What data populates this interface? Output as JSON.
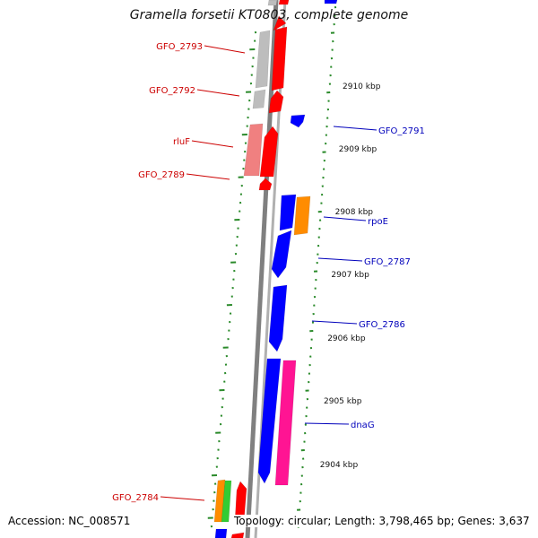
{
  "title": "Gramella forsetii KT0803, complete genome",
  "footer": {
    "accession": "Accession: NC_008571",
    "topology": "Topology: circular; Length: 3,798,465 bp; Genes: 3,637"
  },
  "colors": {
    "label_red": "#cc0000",
    "label_blue": "#0000bb",
    "red": "#ff0000",
    "blue": "#0000ff",
    "gray": "#bdbdbd",
    "pink": "#f08080",
    "orange": "#ff8c00",
    "green": "#33cc33",
    "magenta": "#ff1493",
    "tick_green": "#2a8a2a",
    "backbone": "#808080"
  },
  "scale_labels": [
    {
      "text": "2910 kbp"
    },
    {
      "text": "2909 kbp"
    },
    {
      "text": "2908 kbp"
    },
    {
      "text": "2907 kbp"
    },
    {
      "text": "2906 kbp"
    },
    {
      "text": "2905 kbp"
    },
    {
      "text": "2904 kbp"
    }
  ],
  "gene_labels_left": [
    {
      "text": "GFO_2793"
    },
    {
      "text": "GFO_2792"
    },
    {
      "text": "rluF"
    },
    {
      "text": "GFO_2789"
    },
    {
      "text": "GFO_2784"
    }
  ],
  "gene_labels_right": [
    {
      "text": "GFO_2791"
    },
    {
      "text": "rpoE"
    },
    {
      "text": "GFO_2787"
    },
    {
      "text": "GFO_2786"
    },
    {
      "text": "dnaG"
    }
  ]
}
